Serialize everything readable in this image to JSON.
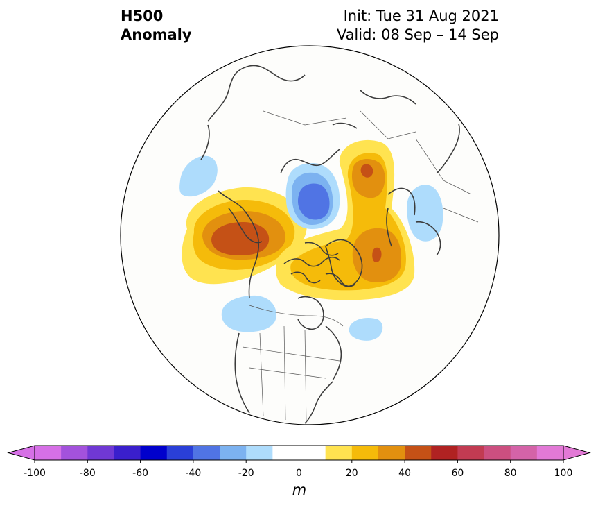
{
  "title": {
    "left_line1": "H500",
    "left_line2": "Anomaly",
    "init": "Init: Tue 31 Aug 2021",
    "valid": "Valid: 08 Sep – 14 Sep"
  },
  "colorbar": {
    "unit": "m",
    "min": -100,
    "max": 100,
    "step": 10,
    "ticks": [
      "-100",
      "-80",
      "-60",
      "-40",
      "-20",
      "0",
      "20",
      "40",
      "60",
      "80",
      "100"
    ],
    "colors": [
      "#d670e6",
      "#a352dc",
      "#7038d4",
      "#3a1fcc",
      "#0000cc",
      "#2a3fd8",
      "#5074e4",
      "#7cb2f0",
      "#aedcfc",
      "#ffffff",
      "#ffffff",
      "#ffe350",
      "#f5bb0a",
      "#e2900f",
      "#c55116",
      "#b02222",
      "#c23b52",
      "#cc4f80",
      "#d463a8",
      "#e279d6"
    ]
  },
  "map": {
    "projection": "north-polar-stereographic",
    "anomaly_colors": {
      "pos10": "#ffe350",
      "pos20": "#f5bb0a",
      "pos30": "#e2900f",
      "pos40": "#c55116",
      "neg10": "#aedcfc",
      "neg20": "#7cb2f0",
      "neg30": "#5074e4"
    }
  }
}
